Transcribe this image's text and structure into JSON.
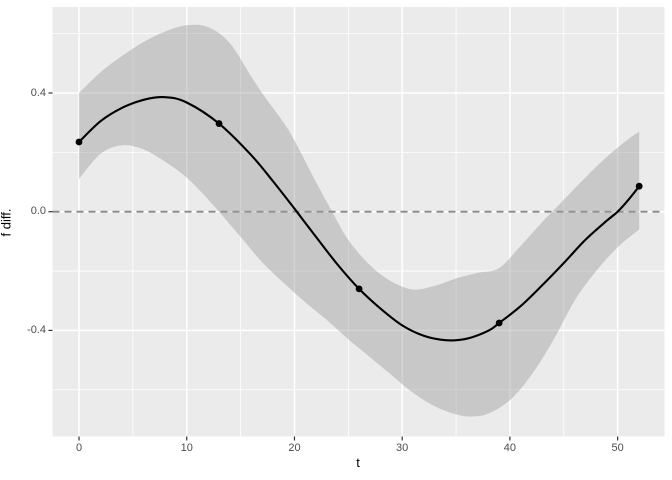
{
  "chart_data": {
    "type": "line",
    "title": "",
    "xlabel": "t",
    "ylabel": "f diff.",
    "xlim": [
      -2.46,
      54.35
    ],
    "ylim": [
      -0.7575,
      0.6898
    ],
    "grid": "major-and-minor-white-on-gray-panel",
    "legend_position": "none",
    "x_ticks": [
      {
        "v": 0,
        "label": "0"
      },
      {
        "v": 10,
        "label": "10"
      },
      {
        "v": 20,
        "label": "20"
      },
      {
        "v": 30,
        "label": "30"
      },
      {
        "v": 40,
        "label": "40"
      },
      {
        "v": 50,
        "label": "50"
      }
    ],
    "y_ticks": [
      {
        "v": -0.4,
        "label": "-0.4"
      },
      {
        "v": 0.0,
        "label": "0.0"
      },
      {
        "v": 0.4,
        "label": "0.4"
      }
    ],
    "x_minor_ticks": [
      5,
      15,
      25,
      35,
      45
    ],
    "y_minor_ticks": [
      0.6,
      0.2,
      -0.2,
      -0.6
    ],
    "hline": {
      "y": 0,
      "style": "dashed",
      "dash": [
        7,
        5
      ]
    },
    "smooth_line": [
      [
        0,
        0.235
      ],
      [
        2,
        0.305
      ],
      [
        4,
        0.35
      ],
      [
        6,
        0.377
      ],
      [
        8,
        0.386
      ],
      [
        10,
        0.368
      ],
      [
        13,
        0.297
      ],
      [
        16,
        0.19
      ],
      [
        18,
        0.103
      ],
      [
        20,
        0.01
      ],
      [
        22,
        -0.085
      ],
      [
        24,
        -0.178
      ],
      [
        26,
        -0.26
      ],
      [
        28,
        -0.327
      ],
      [
        30,
        -0.383
      ],
      [
        32,
        -0.418
      ],
      [
        34,
        -0.433
      ],
      [
        36,
        -0.428
      ],
      [
        38,
        -0.401
      ],
      [
        39,
        -0.375
      ],
      [
        41,
        -0.318
      ],
      [
        43,
        -0.248
      ],
      [
        45,
        -0.173
      ],
      [
        47,
        -0.095
      ],
      [
        49,
        -0.03
      ],
      [
        50,
        0.0
      ],
      [
        51,
        0.04
      ],
      [
        52,
        0.086
      ]
    ],
    "ribbon_upper": [
      [
        0,
        0.4
      ],
      [
        2,
        0.47
      ],
      [
        4,
        0.525
      ],
      [
        6,
        0.572
      ],
      [
        8,
        0.607
      ],
      [
        10,
        0.628
      ],
      [
        12,
        0.622
      ],
      [
        14,
        0.568
      ],
      [
        16,
        0.455
      ],
      [
        17,
        0.4
      ],
      [
        19,
        0.3
      ],
      [
        20,
        0.24
      ],
      [
        22,
        0.1
      ],
      [
        23.5,
        0.0
      ],
      [
        25,
        -0.095
      ],
      [
        27,
        -0.18
      ],
      [
        29,
        -0.235
      ],
      [
        31,
        -0.262
      ],
      [
        33,
        -0.25
      ],
      [
        35,
        -0.225
      ],
      [
        37,
        -0.206
      ],
      [
        39,
        -0.19
      ],
      [
        41,
        -0.115
      ],
      [
        43,
        -0.035
      ],
      [
        45,
        0.04
      ],
      [
        47,
        0.115
      ],
      [
        49,
        0.185
      ],
      [
        51,
        0.245
      ],
      [
        52,
        0.27
      ]
    ],
    "ribbon_lower": [
      [
        0,
        0.11
      ],
      [
        2,
        0.195
      ],
      [
        4,
        0.224
      ],
      [
        6,
        0.21
      ],
      [
        8,
        0.168
      ],
      [
        10,
        0.115
      ],
      [
        11.5,
        0.06
      ],
      [
        13,
        0.0
      ],
      [
        15,
        -0.085
      ],
      [
        17,
        -0.17
      ],
      [
        19,
        -0.24
      ],
      [
        21,
        -0.305
      ],
      [
        23,
        -0.365
      ],
      [
        25,
        -0.43
      ],
      [
        27,
        -0.49
      ],
      [
        29,
        -0.55
      ],
      [
        31,
        -0.61
      ],
      [
        33,
        -0.655
      ],
      [
        35,
        -0.683
      ],
      [
        36.5,
        -0.69
      ],
      [
        38,
        -0.68
      ],
      [
        40,
        -0.635
      ],
      [
        42,
        -0.55
      ],
      [
        44,
        -0.435
      ],
      [
        46,
        -0.3
      ],
      [
        48,
        -0.2
      ],
      [
        50,
        -0.12
      ],
      [
        52,
        -0.06
      ]
    ],
    "scatter_points": [
      [
        0,
        0.235
      ],
      [
        13,
        0.297
      ],
      [
        26,
        -0.26
      ],
      [
        39,
        -0.375
      ],
      [
        52,
        0.086
      ]
    ],
    "colors": {
      "figure_background": "#ffffff",
      "panel_background": "#ebebeb",
      "gridline": "#ffffff",
      "ribbon": "rgba(153,153,153,0.42)",
      "line": "#000000",
      "point": "#000000",
      "hline": "#8a8a8a",
      "tick_label": "#4d4d4d",
      "tick_mark": "#333333",
      "axis_title": "#000000"
    }
  }
}
